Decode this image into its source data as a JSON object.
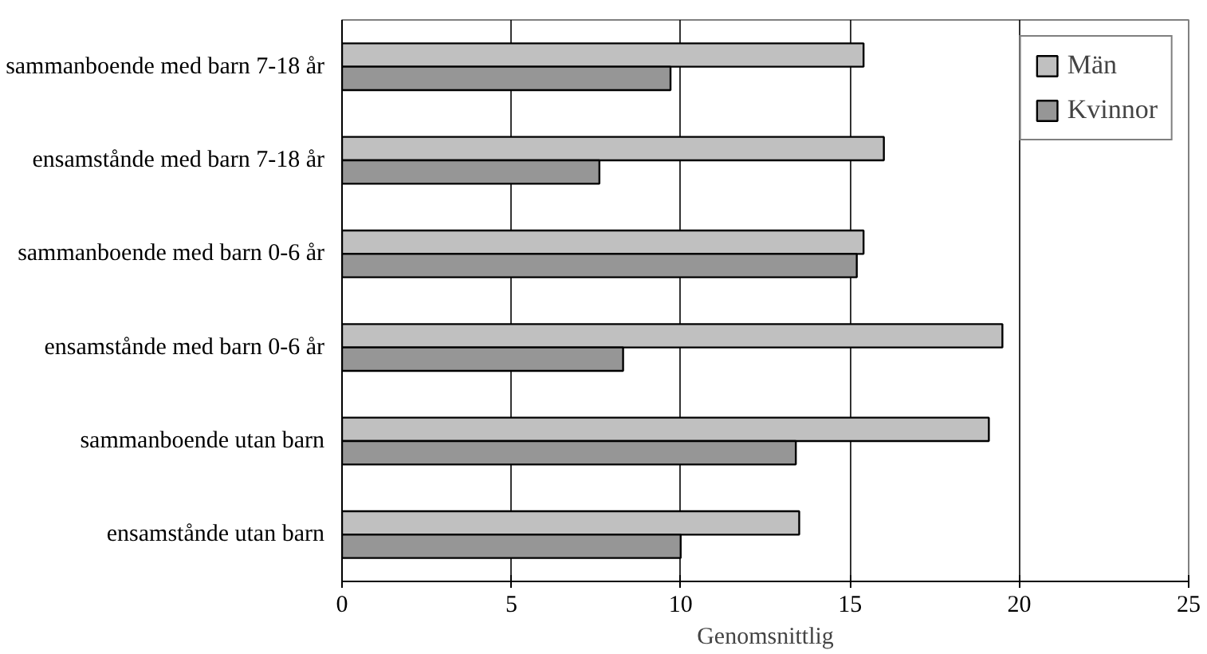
{
  "chart_data": {
    "type": "bar",
    "orientation": "horizontal",
    "xlabel": "Genomsnittlig",
    "categories": [
      "sammanboende med barn 7-18 år",
      "ensamstånde med barn 7-18 år",
      "sammanboende med barn 0-6 år",
      "ensamstånde med barn 0-6 år",
      "sammanboende utan barn",
      "ensamstånde utan barn"
    ],
    "series": [
      {
        "name": "Män",
        "color": "#c0c0c0",
        "values": [
          15.4,
          16.0,
          15.4,
          19.5,
          19.1,
          13.5
        ]
      },
      {
        "name": "Kvinnor",
        "color": "#969696",
        "values": [
          9.7,
          7.6,
          15.2,
          8.3,
          13.4,
          10.0
        ]
      }
    ],
    "xlim": [
      0,
      25
    ],
    "xticks": [
      0,
      5,
      10,
      15,
      20,
      25
    ],
    "grid": "x",
    "legend": "top right"
  }
}
